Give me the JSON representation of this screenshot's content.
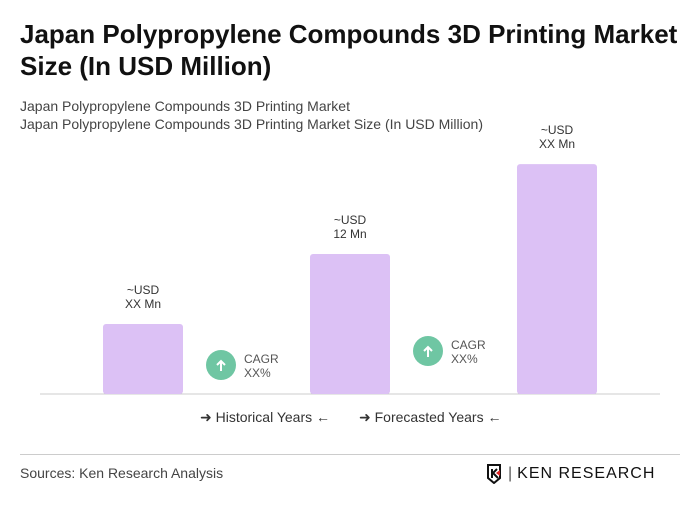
{
  "title": "Japan Polypropylene Compounds 3D Printing Market Size (In USD Million)",
  "subtitle1": "Japan Polypropylene Compounds 3D Printing Market",
  "subtitle2": "Japan Polypropylene Compounds 3D Printing Market Size (In USD Million)",
  "chart_data": {
    "type": "bar",
    "categories": [
      "",
      "",
      ""
    ],
    "values": [
      6,
      12,
      19.7
    ],
    "data_labels": [
      [
        "~USD",
        "XX Mn"
      ],
      [
        "~USD",
        "12 Mn"
      ],
      [
        "~USD",
        "XX Mn"
      ]
    ],
    "bar_color": "#dcc1f5",
    "cagr": [
      {
        "line1": "CAGR",
        "line2": "XX%"
      },
      {
        "line1": "CAGR",
        "line2": "XX%"
      }
    ],
    "cagr_color": "#6fc6a3",
    "grid": false
  },
  "legend": {
    "historical": "Historical Years",
    "forecasted": "Forecasted Years"
  },
  "source": "Sources: Ken Research Analysis",
  "logo_text": "KEN RESEARCH"
}
